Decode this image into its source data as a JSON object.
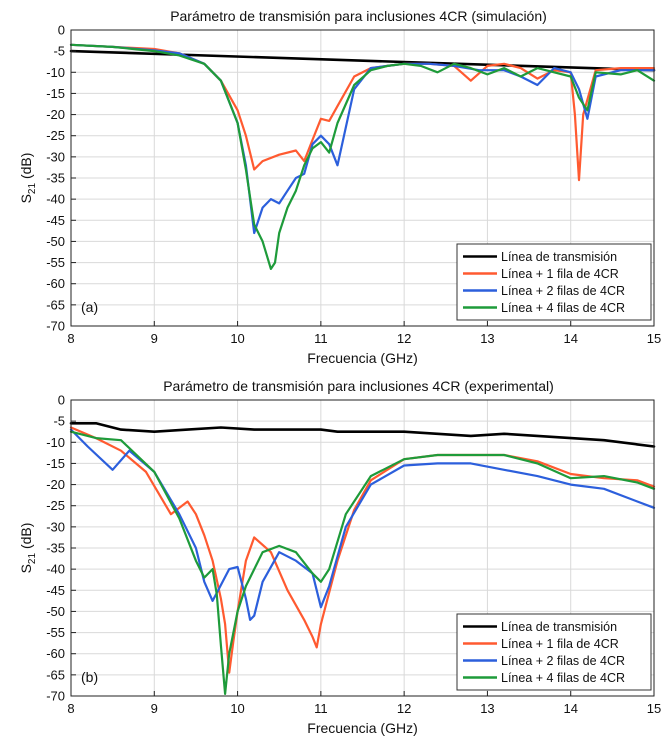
{
  "chart_data": [
    {
      "type": "line",
      "panel_label": "(a)",
      "title": "Parámetro de transmisión para inclusiones 4CR (simulación)",
      "xlabel": "Frecuencia (GHz)",
      "ylabel_main": "S",
      "ylabel_sub": "21",
      "ylabel_unit": " (dB)",
      "xlim": [
        8,
        15
      ],
      "ylim": [
        -70,
        0
      ],
      "xticks": [
        8,
        9,
        10,
        11,
        12,
        13,
        14,
        15
      ],
      "yticks": [
        0,
        -5,
        -10,
        -15,
        -20,
        -25,
        -30,
        -35,
        -40,
        -45,
        -50,
        -55,
        -60,
        -65,
        -70
      ],
      "grid": true,
      "legend_position": "bottom-right",
      "series": [
        {
          "name": "Línea de transmisión",
          "color": "#000000",
          "x": [
            8,
            15
          ],
          "y": [
            -5,
            -9.5
          ]
        },
        {
          "name": "Línea + 1 fila de 4CR",
          "color": "#ff5a30",
          "x": [
            8,
            8.5,
            9,
            9.3,
            9.6,
            9.8,
            10.0,
            10.1,
            10.2,
            10.3,
            10.5,
            10.7,
            10.8,
            10.9,
            11.0,
            11.1,
            11.2,
            11.4,
            11.6,
            11.8,
            12.0,
            12.3,
            12.6,
            12.8,
            13.0,
            13.2,
            13.4,
            13.6,
            13.8,
            14.0,
            14.05,
            14.1,
            14.15,
            14.3,
            14.6,
            15
          ],
          "y": [
            -3.5,
            -4,
            -4.5,
            -5.5,
            -8,
            -12,
            -19,
            -25,
            -33,
            -31,
            -29.5,
            -28.5,
            -31,
            -26,
            -21,
            -21.5,
            -18,
            -11,
            -9,
            -8.5,
            -8,
            -8,
            -8.5,
            -12,
            -8.5,
            -8,
            -9,
            -11.5,
            -9.5,
            -10,
            -20,
            -35.5,
            -20,
            -9.5,
            -9,
            -9
          ]
        },
        {
          "name": "Línea + 2 filas de 4CR",
          "color": "#2c5fdc",
          "x": [
            8,
            8.5,
            9,
            9.3,
            9.6,
            9.8,
            10.0,
            10.1,
            10.2,
            10.3,
            10.4,
            10.5,
            10.6,
            10.7,
            10.8,
            10.9,
            11.0,
            11.1,
            11.2,
            11.4,
            11.6,
            11.8,
            12.0,
            12.3,
            12.6,
            12.9,
            13.2,
            13.4,
            13.6,
            13.8,
            14.0,
            14.1,
            14.2,
            14.3,
            14.6,
            15
          ],
          "y": [
            -3.5,
            -4,
            -4.8,
            -5.5,
            -8,
            -12,
            -22,
            -32,
            -48,
            -42,
            -40,
            -41,
            -38,
            -35,
            -34,
            -27,
            -25,
            -27,
            -32,
            -14,
            -9,
            -8.5,
            -8,
            -8,
            -8.5,
            -9.5,
            -9.5,
            -11,
            -13,
            -9,
            -10,
            -14,
            -21,
            -11,
            -9.5,
            -9.5
          ]
        },
        {
          "name": "Línea + 4 filas de 4CR",
          "color": "#1e9b3a",
          "x": [
            8,
            8.5,
            9,
            9.3,
            9.6,
            9.8,
            10.0,
            10.1,
            10.2,
            10.3,
            10.4,
            10.45,
            10.5,
            10.6,
            10.7,
            10.8,
            10.9,
            11.0,
            11.1,
            11.2,
            11.4,
            11.6,
            11.8,
            12.0,
            12.2,
            12.4,
            12.6,
            12.8,
            13.0,
            13.2,
            13.4,
            13.6,
            13.8,
            14.0,
            14.1,
            14.2,
            14.3,
            14.6,
            14.8,
            15
          ],
          "y": [
            -3.5,
            -4,
            -5,
            -6,
            -8,
            -12,
            -22,
            -33,
            -46,
            -50,
            -56.5,
            -55,
            -48,
            -42,
            -38,
            -32,
            -28,
            -26.5,
            -29,
            -22,
            -13,
            -9.5,
            -8.5,
            -8,
            -8.5,
            -10,
            -8,
            -9,
            -10.5,
            -9,
            -11,
            -9,
            -10,
            -11,
            -16,
            -19,
            -10,
            -10.5,
            -9.5,
            -12
          ]
        }
      ]
    },
    {
      "type": "line",
      "panel_label": "(b)",
      "title": "Parámetro de transmisión para inclusiones 4CR (experimental)",
      "xlabel": "Frecuencia (GHz)",
      "ylabel_main": "S",
      "ylabel_sub": "21",
      "ylabel_unit": " (dB)",
      "xlim": [
        8,
        15
      ],
      "ylim": [
        -70,
        0
      ],
      "xticks": [
        8,
        9,
        10,
        11,
        12,
        13,
        14,
        15
      ],
      "yticks": [
        0,
        -5,
        -10,
        -15,
        -20,
        -25,
        -30,
        -35,
        -40,
        -45,
        -50,
        -55,
        -60,
        -65,
        -70
      ],
      "grid": true,
      "legend_position": "bottom-right",
      "series": [
        {
          "name": "Línea de transmisión",
          "color": "#000000",
          "x": [
            8,
            8.3,
            8.6,
            9,
            9.4,
            9.8,
            10.2,
            10.6,
            11,
            11.2,
            11.6,
            12,
            12.4,
            12.8,
            13.2,
            13.6,
            14,
            14.4,
            14.8,
            15
          ],
          "y": [
            -5.5,
            -5.5,
            -7,
            -7.5,
            -7,
            -6.5,
            -7,
            -7,
            -7,
            -7.5,
            -7.5,
            -7.5,
            -8,
            -8.5,
            -8,
            -8.5,
            -9,
            -9.5,
            -10.5,
            -11
          ]
        },
        {
          "name": "Línea + 1 fila de 4CR",
          "color": "#ff5a30",
          "x": [
            8,
            8.3,
            8.6,
            8.9,
            9.2,
            9.4,
            9.5,
            9.6,
            9.7,
            9.8,
            9.85,
            9.9,
            9.95,
            10.0,
            10.1,
            10.2,
            10.4,
            10.6,
            10.8,
            10.9,
            10.95,
            11.0,
            11.2,
            11.4,
            11.6,
            12.0,
            12.4,
            12.8,
            13.2,
            13.6,
            14.0,
            14.4,
            14.8,
            15
          ],
          "y": [
            -6.5,
            -9,
            -12,
            -17,
            -27,
            -24,
            -27,
            -32,
            -38,
            -47,
            -53,
            -64.5,
            -57,
            -50,
            -38,
            -32.5,
            -36,
            -45,
            -52,
            -56,
            -58.5,
            -53,
            -38,
            -26,
            -19,
            -14,
            -13,
            -13,
            -13,
            -14.5,
            -17.5,
            -18.5,
            -19,
            -20.5
          ]
        },
        {
          "name": "Línea + 2 filas de 4CR",
          "color": "#2c5fdc",
          "x": [
            8,
            8.2,
            8.5,
            8.7,
            9.0,
            9.3,
            9.5,
            9.6,
            9.7,
            9.9,
            10.0,
            10.1,
            10.15,
            10.2,
            10.3,
            10.5,
            10.7,
            10.9,
            11.0,
            11.1,
            11.3,
            11.6,
            12.0,
            12.4,
            12.8,
            13.2,
            13.6,
            14.0,
            14.4,
            14.8,
            15
          ],
          "y": [
            -7,
            -11,
            -16.5,
            -12,
            -17,
            -27,
            -35,
            -43,
            -47.5,
            -40,
            -39.5,
            -47,
            -52,
            -51,
            -43,
            -36,
            -38,
            -41,
            -49,
            -44,
            -30,
            -20,
            -15.5,
            -15,
            -15,
            -16.5,
            -18,
            -20,
            -21,
            -24,
            -25.5
          ]
        },
        {
          "name": "Línea + 4 filas de 4CR",
          "color": "#1e9b3a",
          "x": [
            8,
            8.3,
            8.6,
            9.0,
            9.3,
            9.5,
            9.6,
            9.7,
            9.75,
            9.8,
            9.85,
            9.9,
            10.0,
            10.1,
            10.3,
            10.5,
            10.7,
            10.9,
            11.0,
            11.1,
            11.3,
            11.6,
            12.0,
            12.4,
            12.8,
            13.2,
            13.6,
            14.0,
            14.4,
            14.8,
            15
          ],
          "y": [
            -7.5,
            -9,
            -9.5,
            -17,
            -28,
            -38,
            -42,
            -40,
            -46,
            -58,
            -69.5,
            -60,
            -50,
            -44,
            -36,
            -34.5,
            -36,
            -41,
            -43,
            -40,
            -27,
            -18,
            -14,
            -13,
            -13,
            -13,
            -15,
            -18.5,
            -18,
            -19.5,
            -21
          ]
        }
      ]
    }
  ]
}
